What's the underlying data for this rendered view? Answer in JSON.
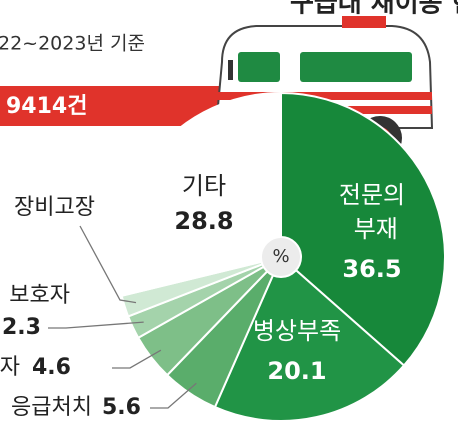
{
  "chart_data": {
    "type": "pie",
    "title": "구급대 재이송 현황",
    "subtitle": "22~2023년 기준",
    "total_label": "9414건",
    "center_label": "%",
    "categories": [
      "전문의 부재",
      "병상부족",
      "응급처치",
      "자",
      "보호자",
      "장비고장",
      "기타"
    ],
    "values": [
      36.5,
      20.1,
      5.6,
      4.6,
      2.3,
      2.1,
      28.8
    ],
    "value_labels": [
      "36.5",
      "20.1",
      "5.6",
      "4.6",
      "2.3",
      null,
      "28.8"
    ],
    "colors": [
      "#17883a",
      "#219446",
      "#5aad6b",
      "#7ebf88",
      "#a4d3ab",
      "#d0e9d4",
      "#ffffff"
    ]
  }
}
